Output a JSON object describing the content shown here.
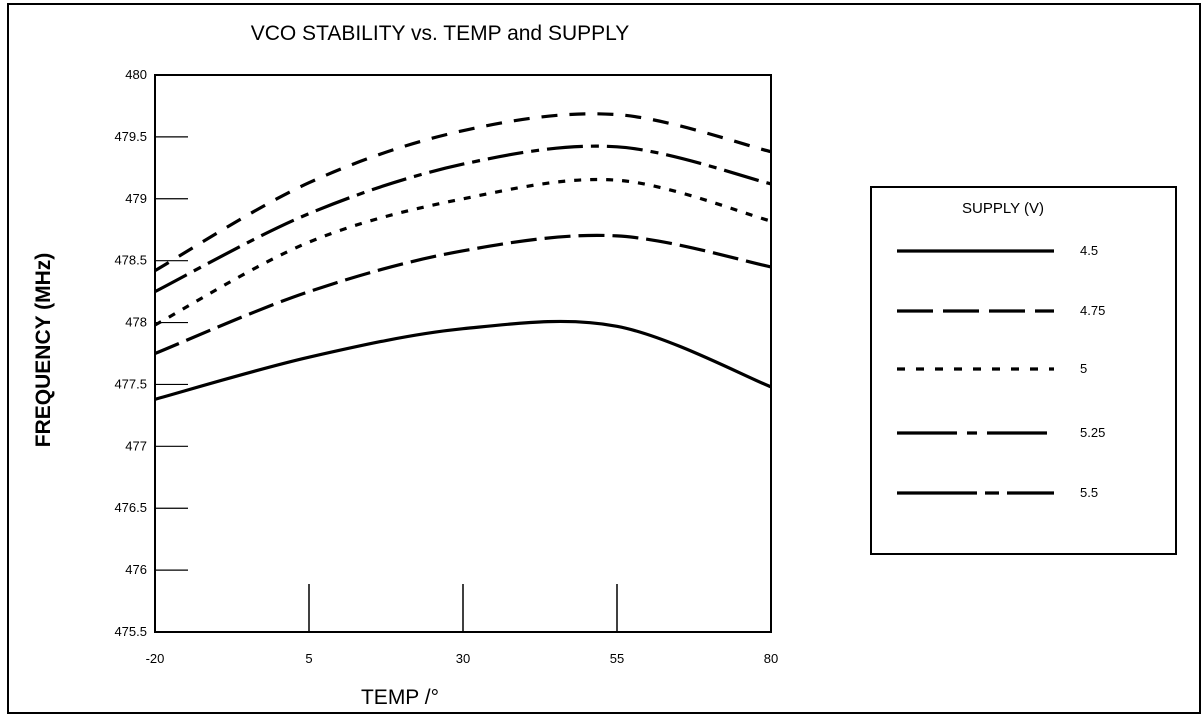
{
  "chart_data": {
    "type": "line",
    "title": "VCO STABILITY vs. TEMP and SUPPLY",
    "xlabel": "TEMP /°",
    "ylabel": "FREQUENCY (MHz)",
    "xlim": [
      -20,
      80
    ],
    "ylim": [
      475.5,
      480
    ],
    "x_ticks": [
      -20,
      5,
      30,
      55,
      80
    ],
    "x_tick_labels": [
      "-20",
      "5",
      "30",
      "55",
      "80"
    ],
    "y_ticks": [
      475.5,
      476,
      476.5,
      477,
      477.5,
      478,
      478.5,
      479,
      479.5,
      480
    ],
    "y_tick_labels": [
      "475.5",
      "476",
      "476.5",
      "477",
      "477.5",
      "478",
      "478.5",
      "479",
      "479.5",
      "480"
    ],
    "grid": false,
    "legend": {
      "title": "SUPPLY (V)",
      "placement": "right"
    },
    "x": [
      -20,
      5,
      30,
      55,
      80
    ],
    "series": [
      {
        "name": "4.5",
        "style": "solid",
        "values": [
          477.38,
          477.72,
          477.95,
          477.97,
          477.48
        ]
      },
      {
        "name": "4.75",
        "style": "long-dash",
        "values": [
          477.75,
          478.25,
          478.58,
          478.7,
          478.45
        ]
      },
      {
        "name": "5",
        "style": "dotted",
        "values": [
          477.98,
          478.65,
          479.0,
          479.15,
          478.82
        ]
      },
      {
        "name": "5.25",
        "style": "dash-dot",
        "values": [
          478.25,
          478.88,
          479.28,
          479.42,
          479.12
        ]
      },
      {
        "name": "5.5",
        "style": "dash-long",
        "values": [
          478.42,
          479.13,
          479.55,
          479.68,
          479.38
        ]
      }
    ]
  }
}
